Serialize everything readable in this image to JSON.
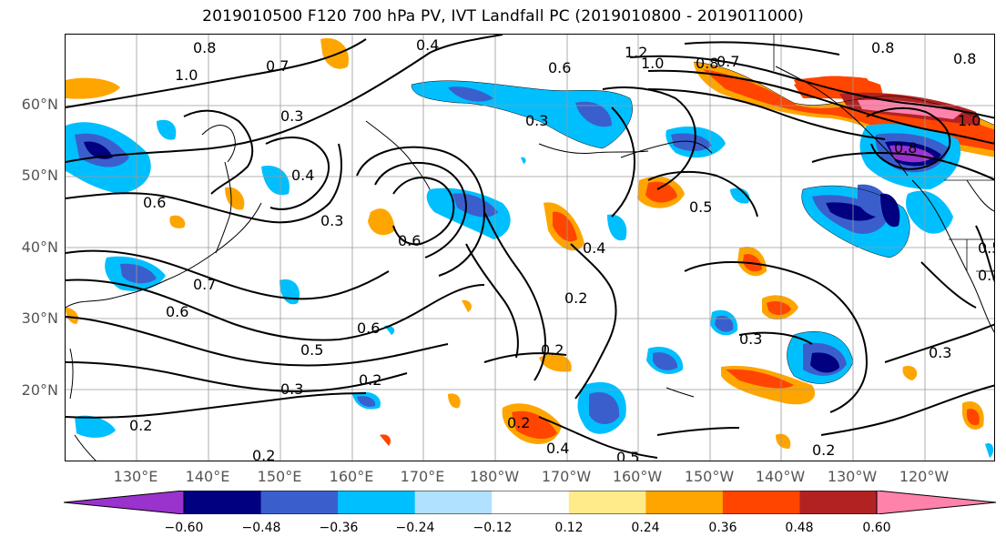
{
  "title": "2019010500 F120 700 hPa PV, IVT Landfall PC (2019010800 - 2019011000)",
  "lat_labels": [
    "60°N",
    "50°N",
    "40°N",
    "30°N",
    "20°N"
  ],
  "lon_labels": [
    "130°E",
    "140°E",
    "150°E",
    "160°E",
    "170°E",
    "180°W",
    "170°W",
    "160°W",
    "150°W",
    "140°W",
    "130°W",
    "120°W"
  ],
  "contour_labels": [
    "0.4",
    "1.2",
    "1.0",
    "0.8",
    "0.7",
    "0.8",
    "0.8",
    "1.0",
    "0.7",
    "0.6",
    "0.3",
    "0.3",
    "0.6",
    "0.4",
    "1.0",
    "0.8",
    "0.6",
    "0.8",
    "0.3",
    "0.5",
    "0.6",
    "0.7",
    "0.4",
    "0.2",
    "0.3",
    "0.3",
    "0.5",
    "0.6",
    "0.2",
    "0.3",
    "0.2",
    "0.2",
    "0.2",
    "0.5",
    "0.4",
    "0.3",
    "0.2",
    "0.5",
    "0.2"
  ],
  "colorbar": {
    "colors": [
      "#9a32cd",
      "#000080",
      "#3a5fcd",
      "#00bfff",
      "#b0e2ff",
      "#ffffff",
      "#ffeb8a",
      "#ffa500",
      "#ff4500",
      "#b22222",
      "#ff82ab"
    ],
    "tick_labels": [
      "−0.60",
      "−0.48",
      "−0.36",
      "−0.24",
      "−0.12",
      "0.12",
      "0.24",
      "0.36",
      "0.48",
      "0.60"
    ]
  }
}
